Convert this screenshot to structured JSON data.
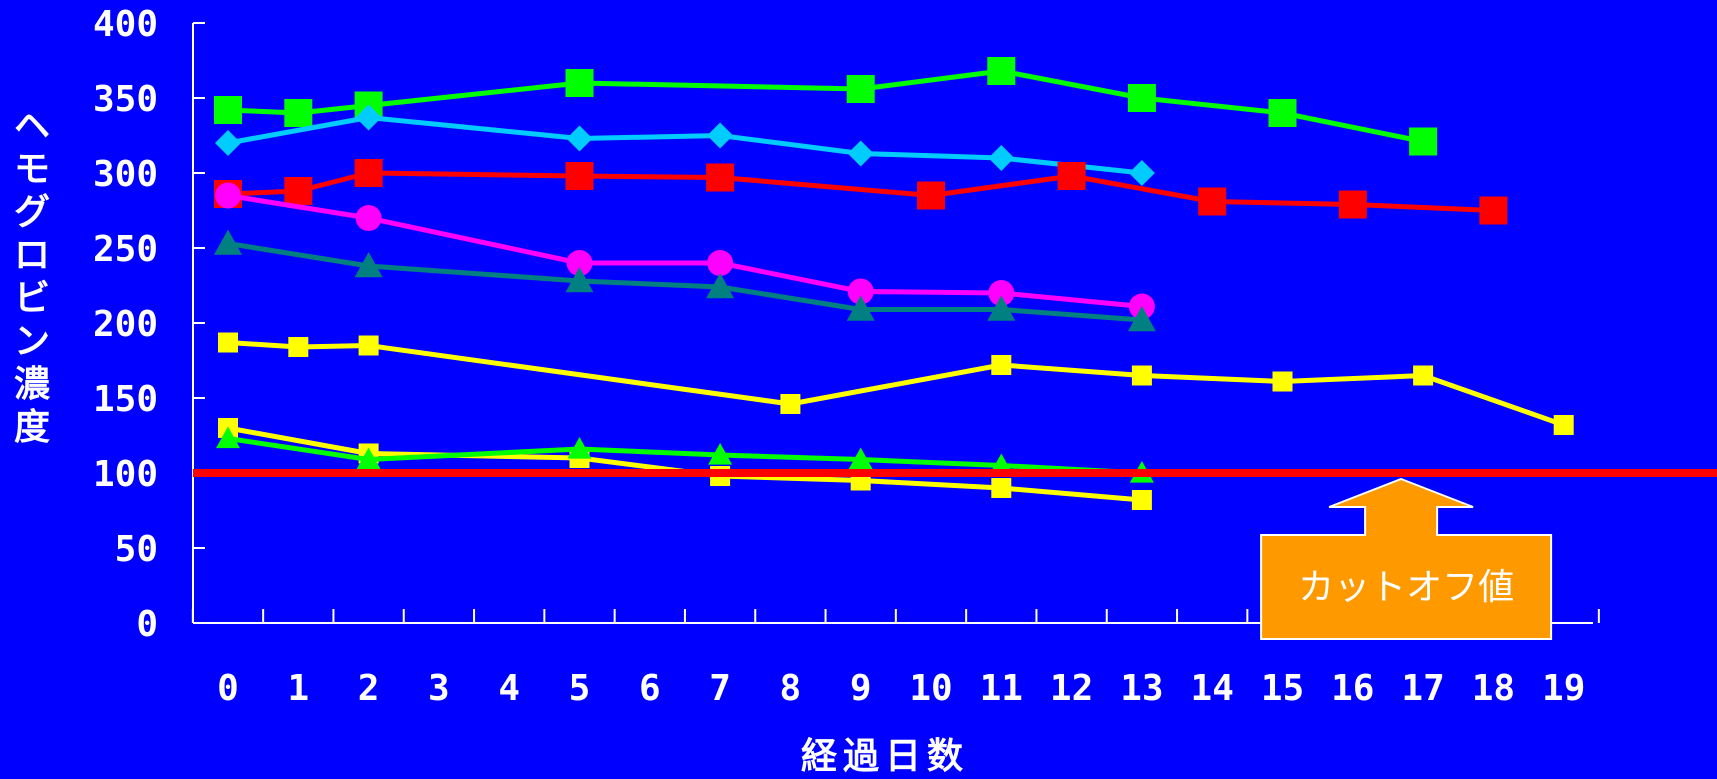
{
  "chart_data": {
    "type": "line",
    "xlabel": "経過日数",
    "ylabel": "ヘモグロビン濃度",
    "x_ticks": [
      "0",
      "1",
      "2",
      "3",
      "4",
      "5",
      "6",
      "7",
      "8",
      "9",
      "10",
      "11",
      "12",
      "13",
      "14",
      "15",
      "16",
      "17",
      "18",
      "19"
    ],
    "y_ticks": [
      "0",
      "50",
      "100",
      "150",
      "200",
      "250",
      "300",
      "350",
      "400"
    ],
    "ylim": [
      0,
      400
    ],
    "xlim": [
      -0.5,
      19.5
    ],
    "grid": false,
    "legend": "none",
    "cutoff": {
      "value": 100,
      "label": "カットオフ値",
      "color": "#ff0000",
      "box_color": "#ff9900",
      "arrow_x": 17
    },
    "series": [
      {
        "color": "#00ff00",
        "marker": "square",
        "size": 28,
        "x": [
          0,
          1,
          2,
          5,
          9,
          11,
          13,
          15,
          17
        ],
        "y": [
          342,
          340,
          345,
          360,
          356,
          368,
          350,
          340,
          321
        ]
      },
      {
        "color": "#00ccff",
        "marker": "diamond",
        "size": 26,
        "x": [
          0,
          2,
          5,
          7,
          9,
          11,
          13
        ],
        "y": [
          320,
          337,
          323,
          325,
          313,
          310,
          300
        ]
      },
      {
        "color": "#ff0000",
        "marker": "square",
        "size": 28,
        "x": [
          0,
          1,
          2,
          5,
          7,
          10,
          12,
          14,
          16,
          18
        ],
        "y": [
          286,
          288,
          300,
          298,
          297,
          285,
          298,
          281,
          279,
          275
        ]
      },
      {
        "color": "#ff00ff",
        "marker": "circle",
        "size": 26,
        "x": [
          0,
          2,
          5,
          7,
          9,
          11,
          13
        ],
        "y": [
          285,
          270,
          240,
          240,
          221,
          220,
          211
        ]
      },
      {
        "color": "#008080",
        "marker": "triangle",
        "size": 28,
        "x": [
          0,
          2,
          5,
          7,
          9,
          11,
          13
        ],
        "y": [
          253,
          238,
          228,
          224,
          209,
          209,
          202
        ]
      },
      {
        "color": "#ffff00",
        "marker": "square",
        "size": 20,
        "x": [
          0,
          1,
          2,
          8,
          11,
          13,
          15,
          17,
          19
        ],
        "y": [
          187,
          184,
          185,
          146,
          172,
          165,
          161,
          165,
          132
        ]
      },
      {
        "color": "#ffff00",
        "marker": "square",
        "size": 20,
        "x": [
          0,
          2,
          5,
          7,
          9,
          11,
          13
        ],
        "y": [
          130,
          113,
          110,
          98,
          95,
          90,
          82
        ]
      },
      {
        "color": "#00ff00",
        "marker": "triangle",
        "size": 24,
        "x": [
          0,
          2,
          5,
          7,
          9,
          11,
          13
        ],
        "y": [
          123,
          109,
          116,
          112,
          109,
          105,
          100
        ]
      }
    ]
  }
}
